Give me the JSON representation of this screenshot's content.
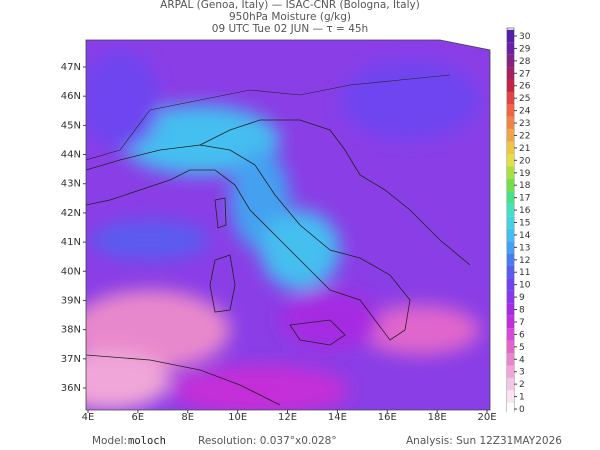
{
  "header": {
    "line1": "ARPAL (Genoa, Italy)  —  ISAC-CNR (Bologna, Italy)",
    "line2": "950hPa Moisture (g/kg)",
    "line3": "09 UTC Tue 02 JUN  —  τ = 45h"
  },
  "map": {
    "lat_labels": [
      "47N",
      "46N",
      "45N",
      "44N",
      "43N",
      "42N",
      "41N",
      "40N",
      "39N",
      "38N",
      "37N",
      "36N"
    ],
    "lon_labels": [
      "4E",
      "6E",
      "8E",
      "10E",
      "12E",
      "14E",
      "16E",
      "18E",
      "20E"
    ]
  },
  "colorbar": {
    "ticks": [
      0,
      1,
      2,
      3,
      4,
      5,
      6,
      7,
      8,
      9,
      10,
      11,
      12,
      13,
      14,
      15,
      16,
      17,
      18,
      19,
      20,
      21,
      22,
      23,
      24,
      25,
      26,
      27,
      28,
      29,
      30
    ],
    "colors": [
      "#ffffff",
      "#f8e4f2",
      "#f2c6e4",
      "#f0a6d8",
      "#e886cc",
      "#e066cc",
      "#d848d4",
      "#c42ed8",
      "#a62ce2",
      "#8a36ea",
      "#6e44f0",
      "#5a5cf0",
      "#4a7cf0",
      "#44a0f0",
      "#44bef0",
      "#44d2e2",
      "#44e0c2",
      "#48e088",
      "#70e048",
      "#a8e044",
      "#e0e044",
      "#f0c444",
      "#f0a444",
      "#f08444",
      "#f06444",
      "#e04444",
      "#c42444",
      "#a42062",
      "#842282",
      "#6822a2",
      "#5220a6"
    ]
  },
  "footer": {
    "model_label": "Model:",
    "model": "moloch",
    "resolution": "Resolution: 0.037°x0.028°",
    "analysis": "Analysis: Sun 12Z31MAY2026"
  }
}
